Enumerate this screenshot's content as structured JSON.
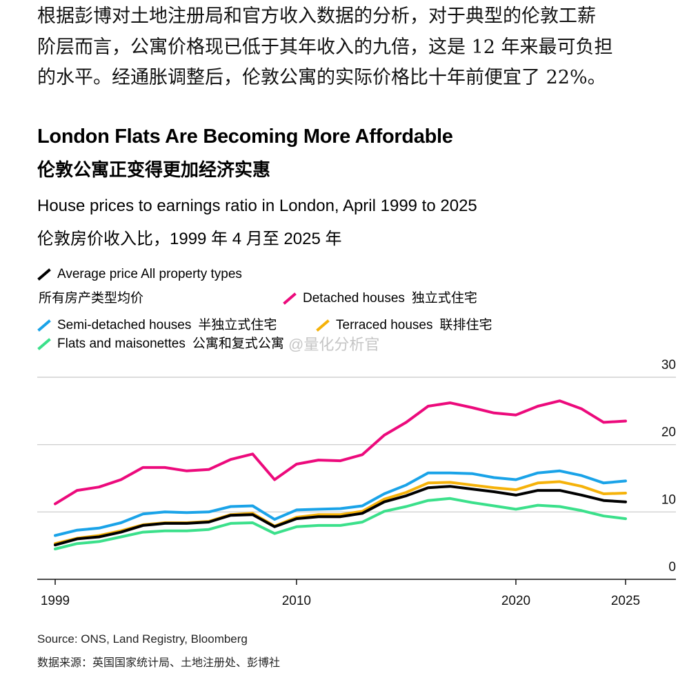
{
  "intro": {
    "line1": "根据彭博对土地注册局和官方收入数据的分析，对于典型的伦敦工薪",
    "line2": "阶层而言，公寓价格现已低于其年收入的九倍，这是 12 年来最可负担",
    "line3": "的水平。经通胀调整后，伦敦公寓的实际价格比十年前便宜了 22%。"
  },
  "watermark": "@量化分析官",
  "legend": {
    "avg_en": "Average price All property types",
    "avg_cn": "所有房产类型均价",
    "detached_en": "Detached houses",
    "detached_cn": "独立式住宅",
    "semi_en": "Semi-detached houses",
    "semi_cn": "半独立式住宅",
    "terraced_en": "Terraced houses",
    "terraced_cn": "联排住宅",
    "flats_en": "Flats and maisonettes",
    "flats_cn": "公寓和复式公寓"
  },
  "source": {
    "en": "Source: ONS, Land Registry, Bloomberg",
    "cn": "数据来源：英国国家统计局、土地注册处、彭博社"
  },
  "chart_data": {
    "type": "line",
    "title": "London Flats Are Becoming More Affordable",
    "title_cn": "伦敦公寓正变得更加经济实惠",
    "subtitle": "House prices to earnings ratio in London, April 1999 to 2025",
    "subtitle_cn": "伦敦房价收入比，1999 年 4 月至 2025 年",
    "xlabel": "",
    "ylabel": "",
    "x": [
      1999,
      2000,
      2001,
      2002,
      2003,
      2004,
      2005,
      2006,
      2007,
      2008,
      2009,
      2010,
      2011,
      2012,
      2013,
      2014,
      2015,
      2016,
      2017,
      2018,
      2019,
      2020,
      2021,
      2022,
      2023,
      2024,
      2025
    ],
    "x_ticks": [
      1999,
      2010,
      2020,
      2025
    ],
    "x_tick_labels": [
      "1999",
      "2010",
      "2020",
      "2025"
    ],
    "xlim": [
      1999,
      2026.5
    ],
    "ylim": [
      0,
      30
    ],
    "y_ticks": [
      0,
      10,
      20,
      30
    ],
    "y_tick_labels": [
      "0",
      "10",
      "20",
      "30"
    ],
    "y_axis_side": "right",
    "grid": true,
    "series": [
      {
        "name": "Detached houses",
        "color": "#ec0a7c",
        "values": [
          11.2,
          13.2,
          13.7,
          14.8,
          16.6,
          16.6,
          16.1,
          16.3,
          17.8,
          18.6,
          14.8,
          17.1,
          17.7,
          17.6,
          18.5,
          21.4,
          23.3,
          25.7,
          26.2,
          25.5,
          24.7,
          24.4,
          25.7,
          26.5,
          25.3,
          23.3,
          23.5
        ]
      },
      {
        "name": "Semi-detached houses",
        "color": "#1aa3e8",
        "values": [
          6.5,
          7.3,
          7.6,
          8.4,
          9.7,
          10.0,
          9.9,
          10.0,
          10.8,
          10.9,
          8.9,
          10.3,
          10.4,
          10.5,
          10.9,
          12.7,
          14.0,
          15.8,
          15.8,
          15.7,
          15.1,
          14.8,
          15.8,
          16.1,
          15.4,
          14.3,
          14.6
        ]
      },
      {
        "name": "Terraced houses",
        "color": "#f5b20a",
        "values": [
          5.3,
          6.1,
          6.5,
          7.2,
          8.1,
          8.4,
          8.4,
          8.6,
          9.6,
          9.8,
          7.9,
          9.2,
          9.6,
          9.6,
          10.1,
          11.9,
          12.9,
          14.3,
          14.4,
          14.0,
          13.6,
          13.3,
          14.3,
          14.5,
          13.8,
          12.7,
          12.8
        ]
      },
      {
        "name": "Flats and maisonettes",
        "color": "#3be08b",
        "values": [
          4.5,
          5.3,
          5.6,
          6.3,
          7.0,
          7.2,
          7.2,
          7.4,
          8.3,
          8.4,
          6.8,
          7.8,
          8.0,
          8.0,
          8.5,
          10.1,
          10.8,
          11.7,
          12.0,
          11.4,
          10.9,
          10.4,
          11.0,
          10.8,
          10.2,
          9.4,
          9.0
        ]
      },
      {
        "name": "Average price All property types",
        "color": "#000000",
        "values": [
          5.1,
          6.0,
          6.3,
          7.0,
          8.0,
          8.3,
          8.3,
          8.5,
          9.5,
          9.6,
          7.8,
          9.0,
          9.3,
          9.3,
          9.8,
          11.5,
          12.4,
          13.6,
          13.8,
          13.4,
          13.0,
          12.5,
          13.2,
          13.2,
          12.5,
          11.7,
          11.5
        ]
      }
    ]
  }
}
